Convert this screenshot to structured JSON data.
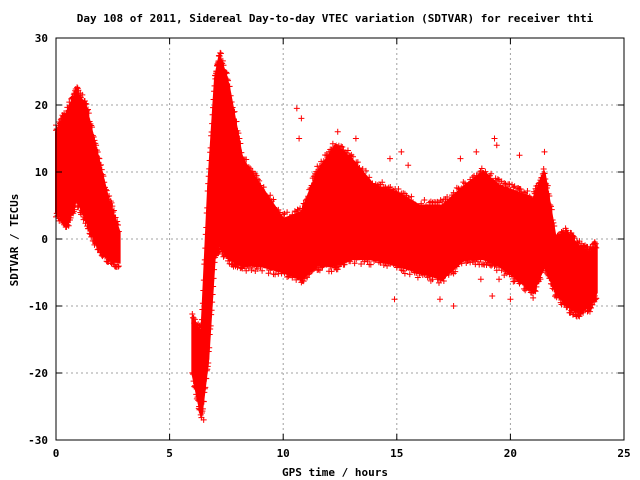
{
  "chart_data": {
    "type": "scatter",
    "title": "Day 108 of 2011, Sidereal Day-to-day VTEC variation (SDTVAR) for receiver thti",
    "xlabel": "GPS time / hours",
    "ylabel": "SDTVAR / TECUs",
    "xlim": [
      0,
      25
    ],
    "ylim": [
      -30,
      30
    ],
    "x_ticks": [
      "0",
      "5",
      "10",
      "15",
      "20",
      "25"
    ],
    "y_ticks": [
      "-30",
      "-20",
      "-10",
      "0",
      "10",
      "20",
      "30"
    ],
    "grid": true,
    "marker": "+",
    "color": "#ff0000",
    "series": [
      {
        "values_envelope": [
          {
            "x": 0.0,
            "low": 4,
            "high": 16
          },
          {
            "x": 0.5,
            "low": 2,
            "high": 19
          },
          {
            "x": 0.9,
            "low": 6,
            "high": 22
          },
          {
            "x": 1.3,
            "low": 3,
            "high": 20
          },
          {
            "x": 1.8,
            "low": -1,
            "high": 13
          },
          {
            "x": 2.3,
            "low": -3,
            "high": 6
          },
          {
            "x": 2.8,
            "low": -3.5,
            "high": 1
          },
          {
            "x": 6.0,
            "low": -20,
            "high": -12
          },
          {
            "x": 6.4,
            "low": -26.5,
            "high": -14
          },
          {
            "x": 6.7,
            "low": -18,
            "high": 8
          },
          {
            "x": 7.0,
            "low": -2,
            "high": 24
          },
          {
            "x": 7.2,
            "low": -1,
            "high": 27.5
          },
          {
            "x": 7.6,
            "low": -3,
            "high": 23
          },
          {
            "x": 8.2,
            "low": -4,
            "high": 12
          },
          {
            "x": 9.0,
            "low": -4,
            "high": 8
          },
          {
            "x": 10.0,
            "low": -5,
            "high": 3
          },
          {
            "x": 10.8,
            "low": -6,
            "high": 4
          },
          {
            "x": 11.5,
            "low": -4,
            "high": 10
          },
          {
            "x": 12.3,
            "low": -4,
            "high": 14
          },
          {
            "x": 13.0,
            "low": -3,
            "high": 12
          },
          {
            "x": 14.0,
            "low": -3,
            "high": 8
          },
          {
            "x": 15.0,
            "low": -4,
            "high": 7
          },
          {
            "x": 16.0,
            "low": -5,
            "high": 5
          },
          {
            "x": 17.0,
            "low": -6,
            "high": 5
          },
          {
            "x": 18.0,
            "low": -3,
            "high": 8
          },
          {
            "x": 18.8,
            "low": -3,
            "high": 10
          },
          {
            "x": 19.5,
            "low": -4,
            "high": 8
          },
          {
            "x": 20.3,
            "low": -6,
            "high": 7
          },
          {
            "x": 21.0,
            "low": -8,
            "high": 6
          },
          {
            "x": 21.5,
            "low": -4,
            "high": 10
          },
          {
            "x": 22.0,
            "low": -8,
            "high": 0
          },
          {
            "x": 22.5,
            "low": -10,
            "high": 1
          },
          {
            "x": 23.0,
            "low": -11,
            "high": -1
          },
          {
            "x": 23.5,
            "low": -10,
            "high": -2
          },
          {
            "x": 23.8,
            "low": -8,
            "high": -1
          }
        ]
      }
    ],
    "outliers": [
      {
        "x": 10.6,
        "y": 19.5
      },
      {
        "x": 10.8,
        "y": 18
      },
      {
        "x": 12.4,
        "y": 16
      },
      {
        "x": 13.2,
        "y": 15
      },
      {
        "x": 14.7,
        "y": 12
      },
      {
        "x": 15.2,
        "y": 13
      },
      {
        "x": 15.5,
        "y": 11
      },
      {
        "x": 17.8,
        "y": 12
      },
      {
        "x": 18.5,
        "y": 13
      },
      {
        "x": 19.3,
        "y": 15
      },
      {
        "x": 19.4,
        "y": 14
      },
      {
        "x": 20.4,
        "y": 12.5
      },
      {
        "x": 21.5,
        "y": 13
      },
      {
        "x": 14.9,
        "y": -9
      },
      {
        "x": 16.9,
        "y": -9
      },
      {
        "x": 17.5,
        "y": -10
      },
      {
        "x": 19.2,
        "y": -8.5
      },
      {
        "x": 20.0,
        "y": -9
      },
      {
        "x": 7.9,
        "y": -2
      },
      {
        "x": 7.8,
        "y": 5
      },
      {
        "x": 8.7,
        "y": 9
      },
      {
        "x": 10.7,
        "y": 15
      },
      {
        "x": 11.3,
        "y": 8
      },
      {
        "x": 12.0,
        "y": 4
      },
      {
        "x": 16.8,
        "y": -6
      },
      {
        "x": 16.3,
        "y": 1
      },
      {
        "x": 20.5,
        "y": -5
      },
      {
        "x": 19.5,
        "y": -6
      },
      {
        "x": 18.7,
        "y": -6
      },
      {
        "x": 22.6,
        "y": -11
      },
      {
        "x": 23.2,
        "y": -11
      },
      {
        "x": 0.2,
        "y": 16
      },
      {
        "x": 0.0,
        "y": 17
      },
      {
        "x": 6.5,
        "y": -27
      },
      {
        "x": 6.3,
        "y": -25
      }
    ]
  }
}
